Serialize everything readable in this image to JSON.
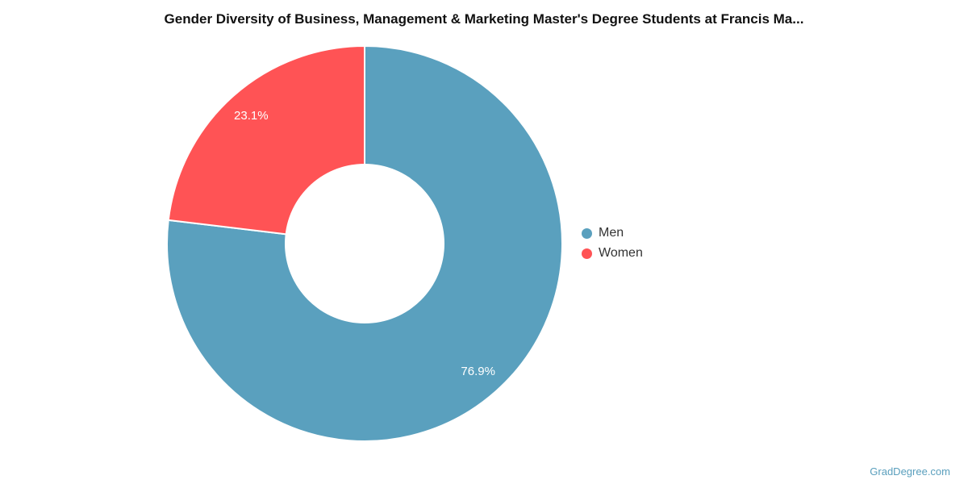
{
  "title": "Gender Diversity of Business, Management & Marketing Master's Degree Students at Francis Ma...",
  "watermark": "GradDegree.com",
  "chart_data": {
    "type": "pie",
    "subtype": "donut",
    "title": "Gender Diversity of Business, Management & Marketing Master's Degree Students at Francis Ma...",
    "categories": [
      "Men",
      "Women"
    ],
    "values": [
      76.9,
      23.1
    ],
    "labels": [
      "76.9%",
      "23.1%"
    ],
    "colors": [
      "#5AA0BE",
      "#FF5355"
    ],
    "slice_label_color": "#ffffff",
    "legend_position": "right",
    "start_angle": 0,
    "direction": "clockwise",
    "outer_radius": 245,
    "inner_radius": 99,
    "label_radius": 212
  }
}
